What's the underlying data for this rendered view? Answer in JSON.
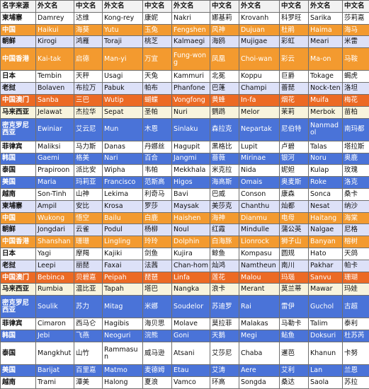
{
  "table": {
    "header": [
      "名字来源",
      "外文名",
      "中文名",
      "外文名",
      "中文名",
      "外文名",
      "中文名",
      "外文名",
      "中文名",
      "外文名",
      "中文名"
    ],
    "rows": [
      {
        "style": "white",
        "cells": [
          "柬埔寨",
          "Damrey",
          "达维",
          "Kong-rey",
          "康妮",
          "Nakri",
          "娜基莉",
          "Krovanh",
          "科罗旺",
          "Sarika",
          "莎莉嘉"
        ]
      },
      {
        "style": "orange",
        "cells": [
          "中国",
          "Haikui",
          "海葵",
          "Yutu",
          "玉兔",
          "Fengshen",
          "风神",
          "Dujuan",
          "杜鹃",
          "Haima",
          "海马"
        ]
      },
      {
        "style": "lav",
        "cells": [
          "朝鲜",
          "Kirogi",
          "鸿雁",
          "Toraji",
          "桃芝",
          "Kalmaegi",
          "海鸥",
          "Mujigae",
          "彩虹",
          "Meari",
          "米雷"
        ]
      },
      {
        "style": "orange",
        "cells": [
          "中国香港",
          "Kai-tak",
          "启德",
          "Man-yi",
          "万宜",
          "Fung-wong",
          "凤凰",
          "Choi-wan",
          "彩云",
          "Ma-on",
          "马鞍"
        ]
      },
      {
        "style": "white",
        "cells": [
          "日本",
          "Tembin",
          "天秤",
          "Usagi",
          "天兔",
          "Kammuri",
          "北冕",
          "Koppu",
          "巨爵",
          "Tokage",
          "蝎虎"
        ]
      },
      {
        "style": "lav",
        "cells": [
          "老挝",
          "Bolaven",
          "布拉万",
          "Pabuk",
          "帕布",
          "Phanfone",
          "巴蓬",
          "Champi",
          "蔷琵",
          "Nock-ten",
          "洛坦"
        ]
      },
      {
        "style": "deeporange",
        "cells": [
          "中国澳门",
          "Sanba",
          "三巴",
          "Wutip",
          "蝴蝶",
          "Vongfong",
          "黄蜂",
          "In-fa",
          "烟花",
          "Muifa",
          "梅花"
        ]
      },
      {
        "style": "pale",
        "cells": [
          "马来西亚",
          "Jelawat",
          "杰拉华",
          "Sepat",
          "圣帕",
          "Nuri",
          "鹦鹉",
          "Melor",
          "茉莉",
          "Merbok",
          "苗柏"
        ]
      },
      {
        "style": "blue",
        "cells": [
          "密克罗尼西亚",
          "Ewiniar",
          "艾云尼",
          "Mun",
          "木恩",
          "Sinlaku",
          "森拉克",
          "Nepartak",
          "尼伯特",
          "Nanmadol",
          "南玛都"
        ]
      },
      {
        "style": "white",
        "cells": [
          "菲律宾",
          "Maliksi",
          "马力斯",
          "Danas",
          "丹娜丝",
          "Hagupit",
          "黑格比",
          "Lupit",
          "卢碧",
          "Talas",
          "塔拉斯"
        ]
      },
      {
        "style": "blue",
        "cells": [
          "韩国",
          "Gaemi",
          "格美",
          "Nari",
          "百合",
          "Jangmi",
          "蔷薇",
          "Mirinae",
          "银河",
          "Noru",
          "奥鹿"
        ]
      },
      {
        "style": "white",
        "cells": [
          "泰国",
          "Prapiroon",
          "派比安",
          "Wipha",
          "韦帕",
          "Mekkhala",
          "米克拉",
          "Nida",
          "妮妲",
          "Kulap",
          "玫瑰"
        ]
      },
      {
        "style": "blue",
        "cells": [
          "美国",
          "Maria",
          "玛莉亚",
          "Francisco",
          "范斯高",
          "Higos",
          "海高斯",
          "Omais",
          "奥麦斯",
          "Roke",
          "洛克"
        ]
      },
      {
        "style": "white",
        "cells": [
          "越南",
          "Son-Tinh",
          "山神",
          "Lekima",
          "利奇马",
          "Bavi",
          "巴威",
          "Conson",
          "康森",
          "Sonca",
          "桑卡"
        ]
      },
      {
        "style": "lav",
        "cells": [
          "柬埔寨",
          "Ampil",
          "安比",
          "Krosa",
          "罗莎",
          "Maysak",
          "美莎克",
          "Chanthu",
          "灿都",
          "Nesat",
          "纳沙"
        ]
      },
      {
        "style": "orange",
        "cells": [
          "中国",
          "Wukong",
          "悟空",
          "Bailu",
          "白鹿",
          "Haishen",
          "海神",
          "Dianmu",
          "电母",
          "Haitang",
          "海棠"
        ]
      },
      {
        "style": "lav",
        "cells": [
          "朝鲜",
          "Jongdari",
          "云雀",
          "Podul",
          "杨柳",
          "Noul",
          "红霞",
          "Mindulle",
          "蒲公英",
          "Nalgae",
          "尼格"
        ]
      },
      {
        "style": "orange",
        "cells": [
          "中国香港",
          "Shanshan",
          "珊珊",
          "Lingling",
          "玲玲",
          "Dolphin",
          "白海豚",
          "Lionrock",
          "狮子山",
          "Banyan",
          "榕树"
        ]
      },
      {
        "style": "white",
        "cells": [
          "日本",
          "Yagi",
          "摩羯",
          "Kajiki",
          "剑鱼",
          "Kujira",
          "鲸鱼",
          "Kompasu",
          "圆规",
          "Hato",
          "天鸽"
        ]
      },
      {
        "style": "lav",
        "cells": [
          "老挝",
          "Leepi",
          "丽琵",
          "Faxai",
          "法茜",
          "Chan-hom",
          "灿鸿",
          "Namtheun",
          "南川",
          "Pakhar",
          "帕卡"
        ]
      },
      {
        "style": "deeporange",
        "cells": [
          "中国澳门",
          "Bebinca",
          "贝碧嘉",
          "Peipah",
          "琵琶",
          "Linfa",
          "莲花",
          "Malou",
          "玛瑙",
          "Sanvu",
          "珊瑚"
        ]
      },
      {
        "style": "pale",
        "cells": [
          "马来西亚",
          "Rumbia",
          "温比亚",
          "Tapah",
          "塔巴",
          "Nangka",
          "浪卡",
          "Merant",
          "莫兰蒂",
          "Mawar",
          "玛娃"
        ]
      },
      {
        "style": "blue",
        "cells": [
          "密克罗尼西亚",
          "Soulik",
          "苏力",
          "Mitag",
          "米娜",
          "Soudelor",
          "苏迪罗",
          "Rai",
          "雷伊",
          "Guchol",
          "古超"
        ]
      },
      {
        "style": "white",
        "cells": [
          "菲律宾",
          "Cimaron",
          "西马仑",
          "Hagibis",
          "海贝思",
          "Molave",
          "莫拉菲",
          "Malakas",
          "马勒卡",
          "Talim",
          "泰利"
        ]
      },
      {
        "style": "blue",
        "cells": [
          "韩国",
          "Jebi",
          "飞燕",
          "Neoguri",
          "浣熊",
          "Goni",
          "天鹅",
          "Megi",
          "鲇鱼",
          "Doksuri",
          "杜苏芮"
        ]
      },
      {
        "style": "white",
        "cells": [
          "泰国",
          "Mangkhut",
          "山竹",
          "Rammasun",
          "威马逊",
          "Atsani",
          "艾莎尼",
          "Chaba",
          "暹芭",
          "Khanun",
          "卡努"
        ]
      },
      {
        "style": "blue",
        "cells": [
          "美国",
          "Barijat",
          "百里嘉",
          "Matmo",
          "麦德姆",
          "Etau",
          "艾涛",
          "Aere",
          "艾利",
          "Lan",
          "兰恩"
        ]
      },
      {
        "style": "white",
        "cells": [
          "越南",
          "Trami",
          "潭美",
          "Halong",
          "夏浪",
          "Vamco",
          "环高",
          "Songda",
          "桑达",
          "Saola",
          "苏拉"
        ]
      }
    ]
  }
}
